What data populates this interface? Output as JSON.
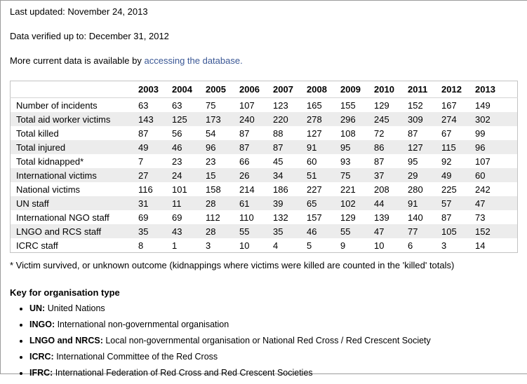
{
  "page": {
    "last_updated": "Last updated: November 24, 2013",
    "verified": "Data verified up to: December 31, 2012",
    "more_data_prefix": "More current data is available by ",
    "link_text": "accessing the database."
  },
  "chart_data": {
    "type": "table",
    "columns": [
      "2003",
      "2004",
      "2005",
      "2006",
      "2007",
      "2008",
      "2009",
      "2010",
      "2011",
      "2012",
      "2013"
    ],
    "rows": [
      {
        "label": "Number of incidents",
        "values": [
          63,
          63,
          75,
          107,
          123,
          165,
          155,
          129,
          152,
          167,
          149
        ]
      },
      {
        "label": "Total aid worker victims",
        "values": [
          143,
          125,
          173,
          240,
          220,
          278,
          296,
          245,
          309,
          274,
          302
        ]
      },
      {
        "label": "Total killed",
        "values": [
          87,
          56,
          54,
          87,
          88,
          127,
          108,
          72,
          87,
          67,
          99
        ]
      },
      {
        "label": "Total injured",
        "values": [
          49,
          46,
          96,
          87,
          87,
          91,
          95,
          86,
          127,
          115,
          96
        ]
      },
      {
        "label": "Total kidnapped*",
        "values": [
          7,
          23,
          23,
          66,
          45,
          60,
          93,
          87,
          95,
          92,
          107
        ]
      },
      {
        "label": "International victims",
        "values": [
          27,
          24,
          15,
          26,
          34,
          51,
          75,
          37,
          29,
          49,
          60
        ]
      },
      {
        "label": "National victims",
        "values": [
          116,
          101,
          158,
          214,
          186,
          227,
          221,
          208,
          280,
          225,
          242
        ]
      },
      {
        "label": "UN staff",
        "values": [
          31,
          11,
          28,
          61,
          39,
          65,
          102,
          44,
          91,
          57,
          47
        ]
      },
      {
        "label": "International NGO staff",
        "values": [
          69,
          69,
          112,
          110,
          132,
          157,
          129,
          139,
          140,
          87,
          73
        ]
      },
      {
        "label": "LNGO and RCS staff",
        "values": [
          35,
          43,
          28,
          55,
          35,
          46,
          55,
          47,
          77,
          105,
          152
        ]
      },
      {
        "label": "ICRC staff",
        "values": [
          8,
          1,
          3,
          10,
          4,
          5,
          9,
          10,
          6,
          3,
          14
        ]
      }
    ]
  },
  "footnote": "* Victim survived, or unknown outcome (kidnappings where victims were killed are counted in the 'killed' totals)",
  "key": {
    "heading": "Key for organisation type",
    "items": [
      {
        "term": "UN:",
        "desc": "United Nations"
      },
      {
        "term": "INGO:",
        "desc": "International non-governmental organisation"
      },
      {
        "term": "LNGO and NRCS:",
        "desc": "Local non-governmental organisation or National Red Cross / Red Crescent Society"
      },
      {
        "term": "ICRC:",
        "desc": "International Committee of the Red Cross"
      },
      {
        "term": "IFRC:",
        "desc": "International Federation of Red Cross and Red Crescent Societies"
      }
    ]
  },
  "colors": {
    "link": "#3a5795",
    "stripe": "#ececec",
    "table_border": "#c3c3c3",
    "frame_border": "#9c9c9c"
  }
}
